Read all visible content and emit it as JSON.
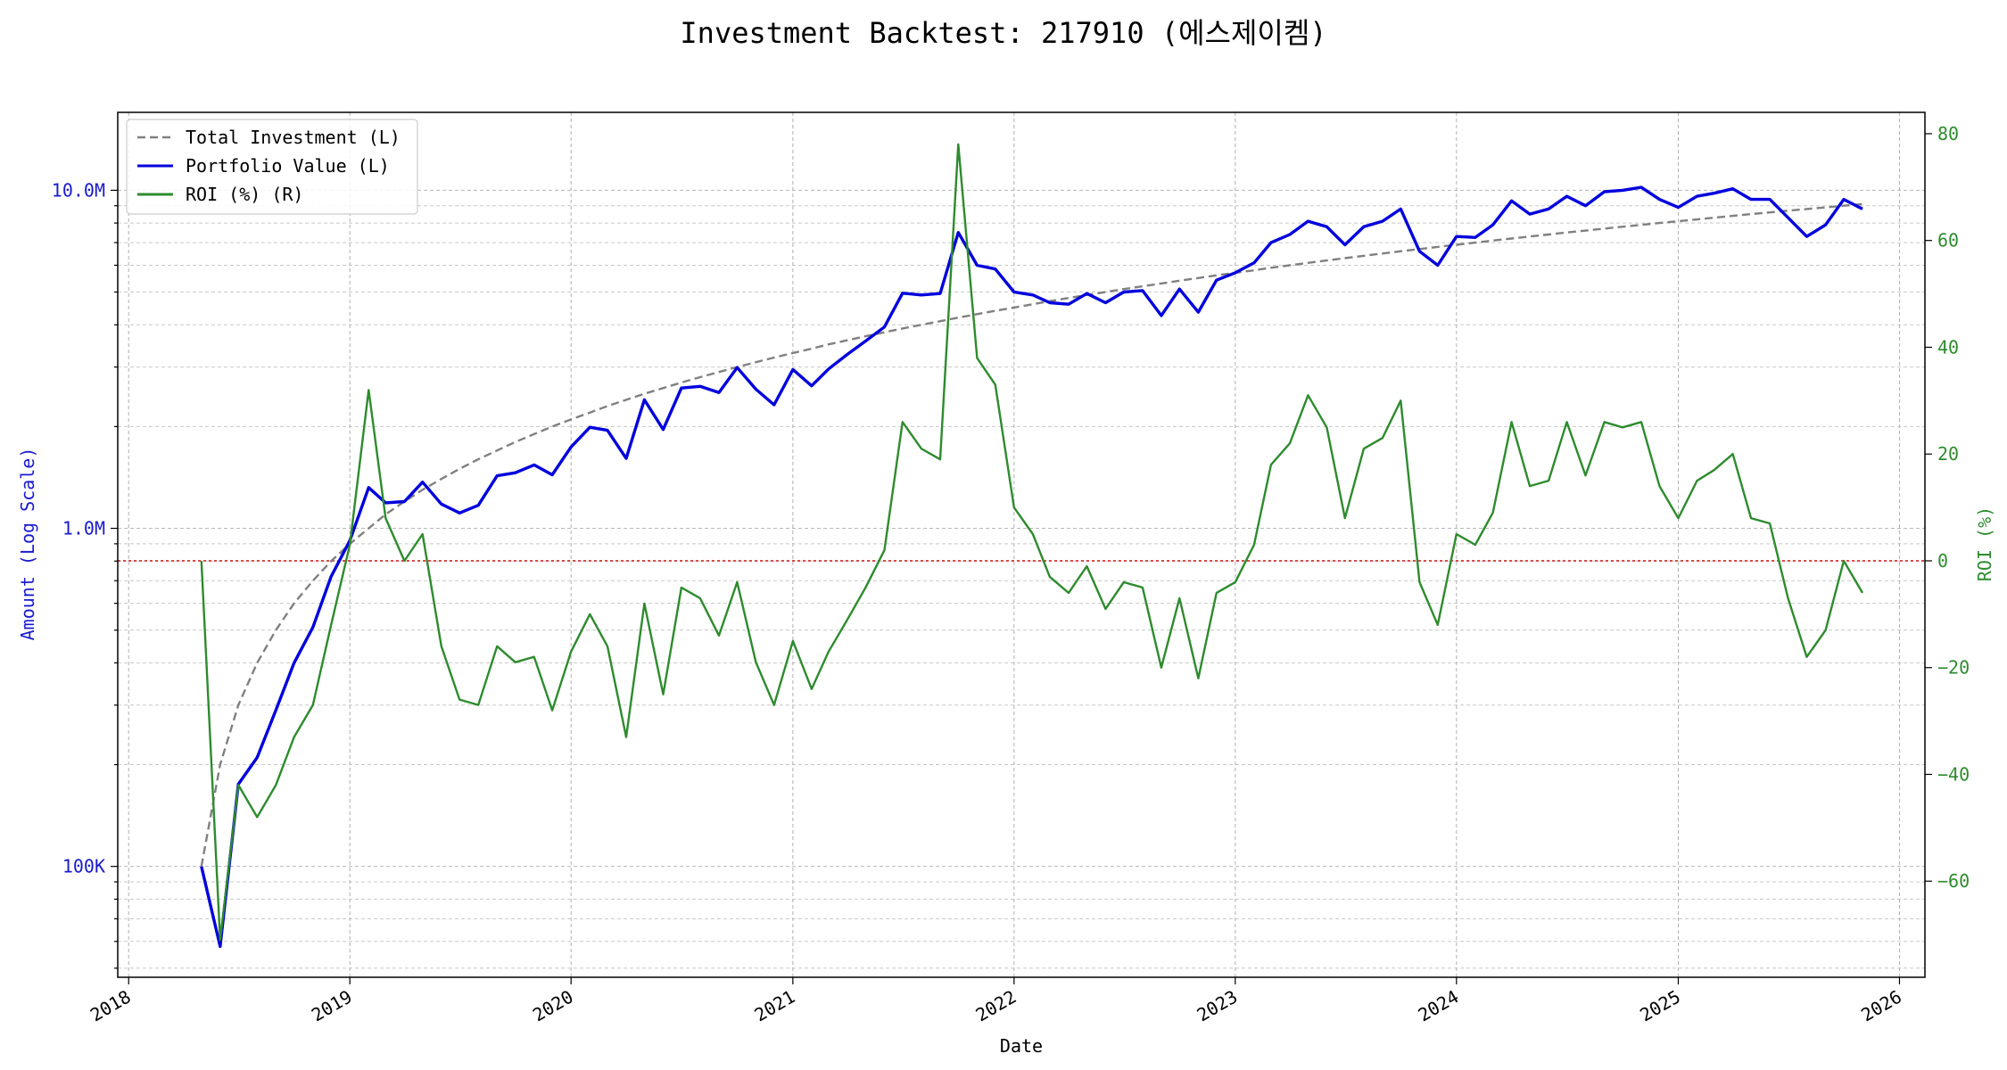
{
  "chart_data": {
    "type": "line",
    "title": "Investment Backtest: 217910 (에스제이켐)",
    "xlabel": "Date",
    "ylabel_left": "Amount (Log Scale)",
    "ylabel_right": "ROI (%)",
    "x_ticks": [
      "2018",
      "2019",
      "2020",
      "2021",
      "2022",
      "2023",
      "2024",
      "2025",
      "2026"
    ],
    "x_range": [
      "2017-12-14",
      "2026-02-12"
    ],
    "y_left": {
      "scale": "log",
      "range": [
        47000,
        17000000
      ],
      "tick_values": [
        100000,
        1000000,
        10000000
      ],
      "tick_labels": [
        "100K",
        "1.0M",
        "10.0M"
      ]
    },
    "y_right": {
      "range": [
        -78,
        84
      ],
      "tick_values": [
        -60,
        -40,
        -20,
        0,
        20,
        40,
        60,
        80
      ],
      "tick_labels": [
        "−60",
        "−40",
        "−20",
        "0",
        "20",
        "40",
        "60",
        "80"
      ]
    },
    "grid": true,
    "legend_placement": "top-left",
    "zero_line_color": "#d62728",
    "dates": [
      "2018-05",
      "2018-06",
      "2018-07",
      "2018-08",
      "2018-09",
      "2018-10",
      "2018-11",
      "2018-12",
      "2019-01",
      "2019-02",
      "2019-03",
      "2019-04",
      "2019-05",
      "2019-06",
      "2019-07",
      "2019-08",
      "2019-09",
      "2019-10",
      "2019-11",
      "2019-12",
      "2020-01",
      "2020-02",
      "2020-03",
      "2020-04",
      "2020-05",
      "2020-06",
      "2020-07",
      "2020-08",
      "2020-09",
      "2020-10",
      "2020-11",
      "2020-12",
      "2021-01",
      "2021-02",
      "2021-03",
      "2021-04",
      "2021-05",
      "2021-06",
      "2021-07",
      "2021-08",
      "2021-09",
      "2021-10",
      "2021-11",
      "2021-12",
      "2022-01",
      "2022-02",
      "2022-03",
      "2022-04",
      "2022-05",
      "2022-06",
      "2022-07",
      "2022-08",
      "2022-09",
      "2022-10",
      "2022-11",
      "2022-12",
      "2023-01",
      "2023-02",
      "2023-03",
      "2023-04",
      "2023-05",
      "2023-06",
      "2023-07",
      "2023-08",
      "2023-09",
      "2023-10",
      "2023-11",
      "2023-12",
      "2024-01",
      "2024-02",
      "2024-03",
      "2024-04",
      "2024-05",
      "2024-06",
      "2024-07",
      "2024-08",
      "2024-09",
      "2024-10",
      "2024-11",
      "2024-12",
      "2025-01",
      "2025-02",
      "2025-03",
      "2025-04",
      "2025-05",
      "2025-06",
      "2025-07",
      "2025-08",
      "2025-09",
      "2025-10",
      "2025-11"
    ],
    "series": [
      {
        "name": "Total Investment (L)",
        "axis": "left",
        "color": "#808080",
        "dash": true,
        "values": [
          100000,
          200000,
          300000,
          400000,
          500000,
          600000,
          700000,
          800000,
          900000,
          1000000,
          1100000,
          1200000,
          1300000,
          1400000,
          1500000,
          1600000,
          1700000,
          1800000,
          1900000,
          2000000,
          2100000,
          2200000,
          2300000,
          2400000,
          2500000,
          2600000,
          2700000,
          2800000,
          2900000,
          3000000,
          3100000,
          3200000,
          3300000,
          3400000,
          3500000,
          3600000,
          3700000,
          3800000,
          3900000,
          4000000,
          4100000,
          4200000,
          4300000,
          4400000,
          4500000,
          4600000,
          4700000,
          4800000,
          4900000,
          5000000,
          5100000,
          5200000,
          5300000,
          5400000,
          5500000,
          5600000,
          5700000,
          5800000,
          5900000,
          6000000,
          6100000,
          6200000,
          6300000,
          6400000,
          6500000,
          6600000,
          6700000,
          6800000,
          6900000,
          7000000,
          7100000,
          7200000,
          7300000,
          7400000,
          7500000,
          7600000,
          7700000,
          7800000,
          7900000,
          8000000,
          8100000,
          8200000,
          8300000,
          8400000,
          8500000,
          8600000,
          8700000,
          8800000,
          8900000,
          9000000,
          9100000
        ]
      },
      {
        "name": "Portfolio Value (L)",
        "axis": "left",
        "color": "#0000dd",
        "dash": false,
        "values": [
          100000,
          58000,
          175000,
          210000,
          290000,
          400000,
          510000,
          720000,
          920000,
          1320000,
          1190000,
          1200000,
          1370000,
          1180000,
          1110000,
          1170000,
          1430000,
          1460000,
          1540000,
          1440000,
          1740000,
          1990000,
          1950000,
          1610000,
          2400000,
          1960000,
          2600000,
          2630000,
          2520000,
          2990000,
          2580000,
          2320000,
          2950000,
          2640000,
          2960000,
          3270000,
          3580000,
          3940000,
          4960000,
          4900000,
          4950000,
          7500000,
          6000000,
          5850000,
          5000000,
          4900000,
          4650000,
          4600000,
          4950000,
          4650000,
          5000000,
          5050000,
          4260000,
          5100000,
          4360000,
          5420000,
          5700000,
          6100000,
          7000000,
          7400000,
          8100000,
          7800000,
          6900000,
          7800000,
          8100000,
          8800000,
          6600000,
          6000000,
          7300000,
          7250000,
          7900000,
          9300000,
          8500000,
          8800000,
          9600000,
          9000000,
          9900000,
          10000000,
          10200000,
          9400000,
          8900000,
          9600000,
          9800000,
          10100000,
          9400000,
          9400000,
          8300000,
          7300000,
          7900000,
          9400000,
          8800000
        ]
      },
      {
        "name": "ROI (%) (R)",
        "axis": "right",
        "color": "#2e8b2e",
        "dash": false,
        "values": [
          0,
          -71,
          -42,
          -48,
          -42,
          -33,
          -27,
          -12,
          3,
          32,
          8,
          0,
          5,
          -16,
          -26,
          -27,
          -16,
          -19,
          -18,
          -28,
          -17,
          -10,
          -16,
          -33,
          -8,
          -25,
          -5,
          -7,
          -14,
          -4,
          -19,
          -27,
          -15,
          -24,
          -17,
          -11,
          -5,
          2,
          26,
          21,
          19,
          78,
          38,
          33,
          10,
          5,
          -3,
          -6,
          -1,
          -9,
          -4,
          -5,
          -20,
          -7,
          -22,
          -6,
          -4,
          3,
          18,
          22,
          31,
          25,
          8,
          21,
          23,
          30,
          -4,
          -12,
          5,
          3,
          9,
          26,
          14,
          15,
          26,
          16,
          26,
          25,
          26,
          14,
          8,
          15,
          17,
          20,
          8,
          7,
          -7,
          -18,
          -13,
          0,
          -6
        ]
      }
    ]
  }
}
